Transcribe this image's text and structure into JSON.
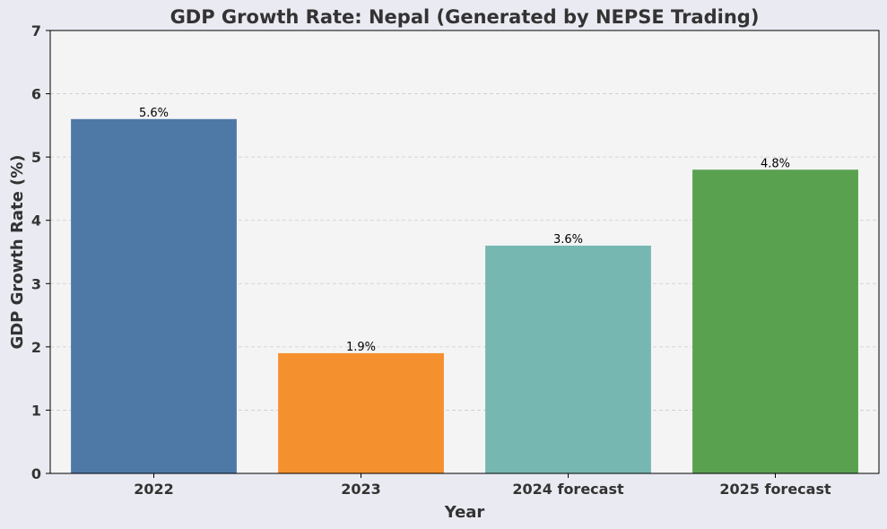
{
  "chart_data": {
    "type": "bar",
    "title": "GDP Growth Rate: Nepal (Generated by NEPSE Trading)",
    "xlabel": "Year",
    "ylabel": "GDP Growth Rate (%)",
    "categories": [
      "2022",
      "2023",
      "2024 forecast",
      "2025 forecast"
    ],
    "values": [
      5.6,
      1.9,
      3.6,
      4.8
    ],
    "data_labels": [
      "5.6%",
      "1.9%",
      "3.6%",
      "4.8%"
    ],
    "colors": [
      "#4e79a7",
      "#f5902e",
      "#76b7b2",
      "#59a14f"
    ],
    "ylim": [
      0,
      7
    ],
    "yticks": [
      "0",
      "1",
      "2",
      "3",
      "4",
      "5",
      "6",
      "7"
    ],
    "grid": "horizontal dashed",
    "legend": "none",
    "background": "#eaeaf2",
    "plot_background": "#f4f4f4"
  }
}
